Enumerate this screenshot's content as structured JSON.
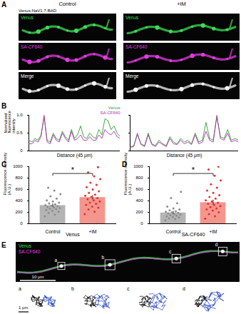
{
  "panel_A": {
    "letter": "A",
    "columns": [
      "Control",
      "+IM"
    ],
    "construct": "Venus-NaV1.7-BAD",
    "rows": [
      "Venus",
      "SA-CF640",
      "Merge"
    ]
  },
  "chart_data": [
    {
      "type": "line",
      "panel": "B",
      "xlabel": "Distance (45 μm)",
      "ylabel": "Normalized fluorescence intensity",
      "x": [
        0,
        1.5,
        3,
        4.5,
        6,
        7.5,
        9,
        10.5,
        12,
        13.5,
        15,
        16.5,
        18,
        19.5,
        21,
        22.5,
        24,
        25.5,
        27,
        28.5,
        30,
        31.5,
        33,
        34.5,
        36,
        37.5,
        39,
        40.5,
        42,
        43.5,
        45
      ],
      "series": [
        {
          "name": "Venus",
          "color": "#2aa02a",
          "values": [
            0.3,
            0.25,
            0.35,
            0.3,
            0.45,
            0.95,
            0.3,
            0.25,
            0.5,
            0.35,
            0.3,
            0.55,
            0.4,
            0.3,
            0.6,
            0.35,
            0.45,
            0.7,
            0.4,
            0.35,
            0.5,
            0.4,
            0.35,
            0.6,
            0.45,
            0.9,
            0.85,
            0.6,
            0.7,
            0.5,
            0.4
          ]
        },
        {
          "name": "SA-CF640",
          "color": "#b02cb0",
          "values": [
            0.2,
            0.2,
            0.3,
            0.25,
            0.4,
            1,
            0.25,
            0.2,
            0.45,
            0.3,
            0.25,
            0.5,
            0.35,
            0.25,
            0.55,
            0.3,
            0.35,
            0.45,
            0.3,
            0.3,
            0.4,
            0.3,
            0.3,
            0.45,
            0.35,
            0.6,
            0.5,
            0.45,
            0.55,
            0.4,
            0.35
          ]
        }
      ],
      "xlim": [
        0,
        45
      ],
      "xticks": [],
      "ylim": [
        0,
        1
      ],
      "yticks": [
        0,
        {
          "value": 0.5,
          "label": "0.5"
        },
        {
          "value": 1,
          "label": "1.0"
        }
      ],
      "tick_labels": "y",
      "legend": "top-right"
    },
    {
      "type": "line",
      "xlabel": "Distance (45 μm)",
      "x": [
        0,
        1.5,
        3,
        4.5,
        6,
        7.5,
        9,
        10.5,
        12,
        13.5,
        15,
        16.5,
        18,
        19.5,
        21,
        22.5,
        24,
        25.5,
        27,
        28.5,
        30,
        31.5,
        33,
        34.5,
        36,
        37.5,
        39,
        40.5,
        42,
        43.5,
        45
      ],
      "series": [
        {
          "color": "#2aa02a",
          "values": [
            0.1,
            0.15,
            0.45,
            0.2,
            0.15,
            0.5,
            0.2,
            0.15,
            0.3,
            0.2,
            0.15,
            0.4,
            0.25,
            0.2,
            0.35,
            0.25,
            0.3,
            0.2,
            0.5,
            0.25,
            0.3,
            0.8,
            0.35,
            0.3,
            0.95,
            0.4,
            0.35,
            0.6,
            0.3,
            0.35,
            0.3
          ]
        },
        {
          "color": "#b02cb0",
          "values": [
            0.1,
            0.12,
            0.5,
            0.18,
            0.12,
            0.45,
            0.18,
            0.12,
            0.25,
            0.18,
            0.12,
            0.35,
            0.2,
            0.18,
            0.3,
            0.2,
            0.25,
            0.18,
            0.45,
            0.2,
            0.25,
            0.55,
            0.3,
            0.25,
            1,
            0.35,
            0.3,
            0.5,
            0.25,
            0.3,
            0.25
          ]
        }
      ],
      "xlim": [
        0,
        45
      ],
      "xticks": [],
      "ylim": [
        0,
        1
      ],
      "yticks": [
        0,
        0.5,
        1
      ],
      "tick_labels": false
    },
    {
      "type": "bar",
      "panel": "C",
      "categories": [
        "Control",
        "+IM"
      ],
      "values": [
        320,
        460
      ],
      "errors": [
        30,
        40
      ],
      "colors": [
        "#b4b4b4",
        "#f4968e"
      ],
      "points": [
        {
          "category": "Control",
          "color": "#8c8c8c",
          "values": [
            130,
            160,
            190,
            210,
            225,
            240,
            255,
            265,
            275,
            285,
            295,
            305,
            315,
            325,
            340,
            355,
            370,
            390,
            410,
            440,
            480,
            520,
            580,
            630
          ]
        },
        {
          "category": "+IM",
          "color": "#e8312a",
          "values": [
            170,
            210,
            250,
            280,
            300,
            330,
            350,
            370,
            390,
            410,
            430,
            450,
            470,
            490,
            510,
            540,
            570,
            600,
            640,
            680,
            720,
            780,
            830,
            900,
            990
          ]
        }
      ],
      "xlabel": "Venus",
      "ylabel": "Fluorescence intensity (A.U.)",
      "ylim": [
        0,
        1000
      ],
      "yticks": [
        0,
        200,
        400,
        600,
        800,
        1000
      ],
      "annotations": [
        {
          "text": "*",
          "from": "Control",
          "to": "+IM",
          "y": 880
        }
      ]
    },
    {
      "type": "bar",
      "panel": "D",
      "categories": [
        "Control",
        "+IM"
      ],
      "values": [
        190,
        370
      ],
      "errors": [
        28,
        45
      ],
      "colors": [
        "#b4b4b4",
        "#f4968e"
      ],
      "points": [
        {
          "category": "Control",
          "color": "#8c8c8c",
          "values": [
            60,
            80,
            95,
            110,
            120,
            130,
            140,
            150,
            160,
            170,
            180,
            190,
            200,
            210,
            220,
            235,
            250,
            270,
            300,
            360,
            450,
            560
          ]
        },
        {
          "category": "+IM",
          "color": "#e8312a",
          "values": [
            90,
            130,
            170,
            200,
            230,
            250,
            270,
            290,
            310,
            330,
            350,
            370,
            390,
            410,
            440,
            470,
            500,
            540,
            580,
            630,
            690,
            760,
            840,
            950,
            1000
          ]
        }
      ],
      "xlabel": "SA-CF640",
      "ylabel": "Fluorescence intensity (A.U.)",
      "ylim": [
        0,
        1000
      ],
      "yticks": [
        0,
        200,
        400,
        600,
        800,
        1000
      ],
      "annotations": [
        {
          "text": "*",
          "from": "Control",
          "to": "+IM",
          "y": 880
        }
      ]
    }
  ],
  "panel_E": {
    "letter": "E",
    "legend": [
      "Venus",
      "SA-CF640"
    ],
    "boxes": [
      "a",
      "b",
      "c",
      "d"
    ],
    "scale_bar": "10 μm",
    "trajectory_scale_bar": "1 μm"
  }
}
